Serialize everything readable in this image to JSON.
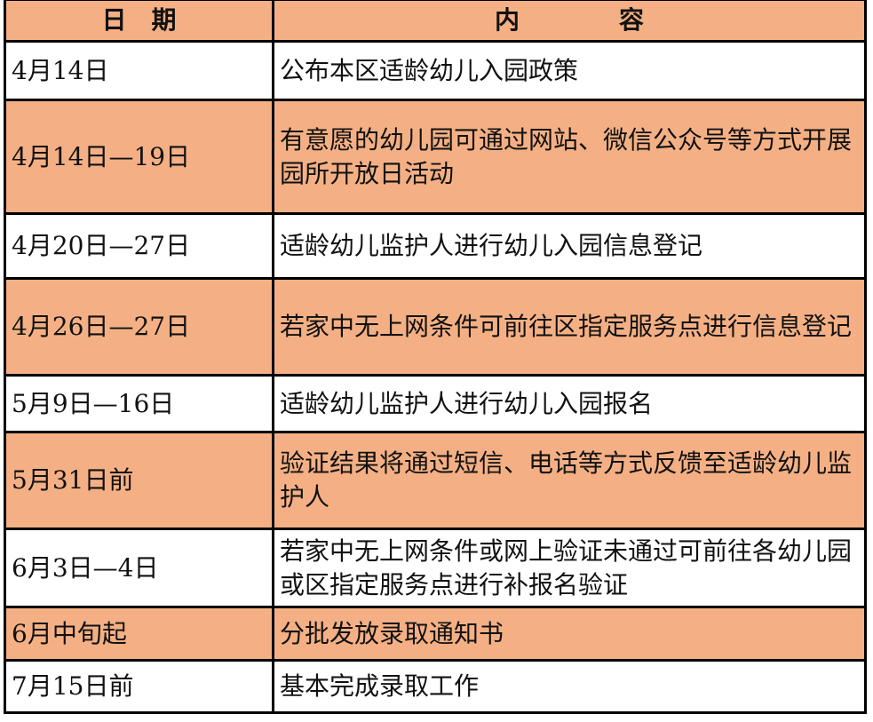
{
  "colors": {
    "highlight": "#F4B084",
    "plain": "#FFFFFF"
  },
  "header": {
    "date": "日　期",
    "content": "内　　　　容"
  },
  "rows": [
    {
      "date": "4月14日",
      "content": "公布本区适龄幼儿入园政策",
      "highlight": false
    },
    {
      "date": "4月14日—19日",
      "content": "有意愿的幼儿园可通过网站、微信公众号等方式开展园所开放日活动",
      "highlight": true
    },
    {
      "date": "4月20日—27日",
      "content": "适龄幼儿监护人进行幼儿入园信息登记",
      "highlight": false
    },
    {
      "date": "4月26日—27日",
      "content": "若家中无上网条件可前往区指定服务点进行信息登记",
      "highlight": true
    },
    {
      "date": "5月9日—16日",
      "content": "适龄幼儿监护人进行幼儿入园报名",
      "highlight": false
    },
    {
      "date": "5月31日前",
      "content": "验证结果将通过短信、电话等方式反馈至适龄幼儿监护人",
      "highlight": true
    },
    {
      "date": "6月3日—4日",
      "content": "若家中无上网条件或网上验证未通过可前往各幼儿园或区指定服务点进行补报名验证",
      "highlight": false
    },
    {
      "date": "6月中旬起",
      "content": "分批发放录取通知书",
      "highlight": true
    },
    {
      "date": "7月15日前",
      "content": "基本完成录取工作",
      "highlight": false
    }
  ]
}
